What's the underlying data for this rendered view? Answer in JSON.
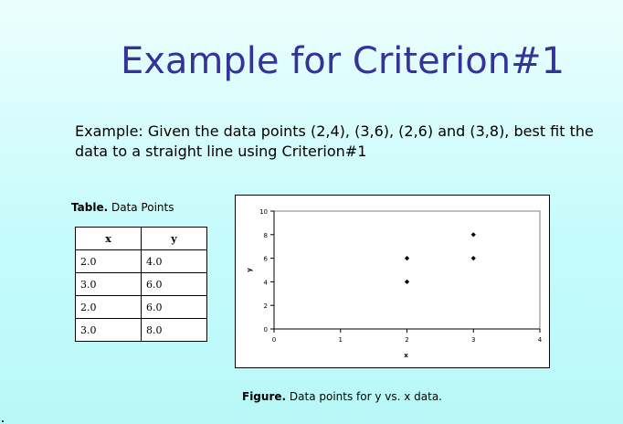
{
  "slide": {
    "title": "Example for Criterion#1",
    "intro": "Example: Given the data points (2,4), (3,6), (2,6) and (3,8), best fit the data to a straight line using Criterion#1"
  },
  "table": {
    "caption_bold": "Table.",
    "caption_text": "Data Points",
    "headers": [
      "x",
      "y"
    ],
    "rows": [
      [
        "2.0",
        "4.0"
      ],
      [
        "3.0",
        "6.0"
      ],
      [
        "2.0",
        "6.0"
      ],
      [
        "3.0",
        "8.0"
      ]
    ]
  },
  "figure": {
    "caption_bold": "Figure.",
    "caption_text": "Data points for y vs. x data."
  },
  "chart_data": {
    "type": "scatter",
    "x": [
      2,
      3,
      2,
      3
    ],
    "y": [
      4,
      6,
      6,
      8
    ],
    "title": "",
    "xlabel": "x",
    "ylabel": "y",
    "xlim": [
      0,
      4
    ],
    "ylim": [
      0,
      10
    ],
    "xticks": [
      "0",
      "1",
      "2",
      "3",
      "4"
    ],
    "yticks": [
      "0",
      "2",
      "4",
      "6",
      "8",
      "10"
    ],
    "grid": false,
    "legend": "none",
    "marker_color": "#000000"
  }
}
